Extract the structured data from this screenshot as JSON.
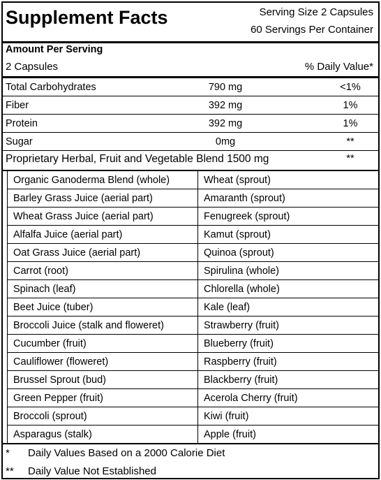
{
  "header": {
    "title": "Supplement Facts",
    "serving_size": "Serving Size 2 Capsules",
    "servings_per_container": "60 Servings Per Container",
    "amount_per_serving": "Amount Per Serving",
    "serving_amount": "2 Capsules",
    "daily_value_header": "% Daily Value*"
  },
  "nutrients": {
    "rows": [
      [
        "Total Carbohydrates",
        "790 mg",
        "<1%"
      ],
      [
        "Fiber",
        "392 mg",
        "1%"
      ],
      [
        "Protein",
        "392 mg",
        "1%"
      ],
      [
        "Sugar",
        "0mg",
        "**"
      ]
    ]
  },
  "blend": {
    "name": "Proprietary Herbal, Fruit and Vegetable Blend 1500 mg",
    "daily_value": "**"
  },
  "ingredients": {
    "rows": [
      [
        "Organic Ganoderma Blend (whole)",
        "Wheat (sprout)"
      ],
      [
        "Barley Grass Juice (aerial part)",
        "Amaranth (sprout)"
      ],
      [
        "Wheat Grass Juice (aerial part)",
        "Fenugreek (sprout)"
      ],
      [
        "Alfalfa Juice (aerial part)",
        "Kamut (sprout)"
      ],
      [
        "Oat Grass Juice (aerial part)",
        "Quinoa (sprout)"
      ],
      [
        "Carrot (root)",
        "Spirulina (whole)"
      ],
      [
        "Spinach (leaf)",
        "Chlorella (whole)"
      ],
      [
        "Beet Juice (tuber)",
        "Kale (leaf)"
      ],
      [
        "Broccoli Juice (stalk and floweret)",
        "Strawberry (fruit)"
      ],
      [
        "Cucumber (fruit)",
        "Blueberry (fruit)"
      ],
      [
        "Cauliflower (floweret)",
        "Raspberry (fruit)"
      ],
      [
        "Brussel Sprout (bud)",
        "Blackberry (fruit)"
      ],
      [
        "Green Pepper (fruit)",
        "Acerola Cherry (fruit)"
      ],
      [
        "Broccoli (sprout)",
        "Kiwi (fruit)"
      ],
      [
        "Asparagus (stalk)",
        "Apple (fruit)"
      ]
    ]
  },
  "footnotes": {
    "rows": [
      [
        "*",
        "Daily Values Based on a 2000 Calorie Diet"
      ],
      [
        "**",
        "Daily Value Not Established"
      ]
    ]
  }
}
